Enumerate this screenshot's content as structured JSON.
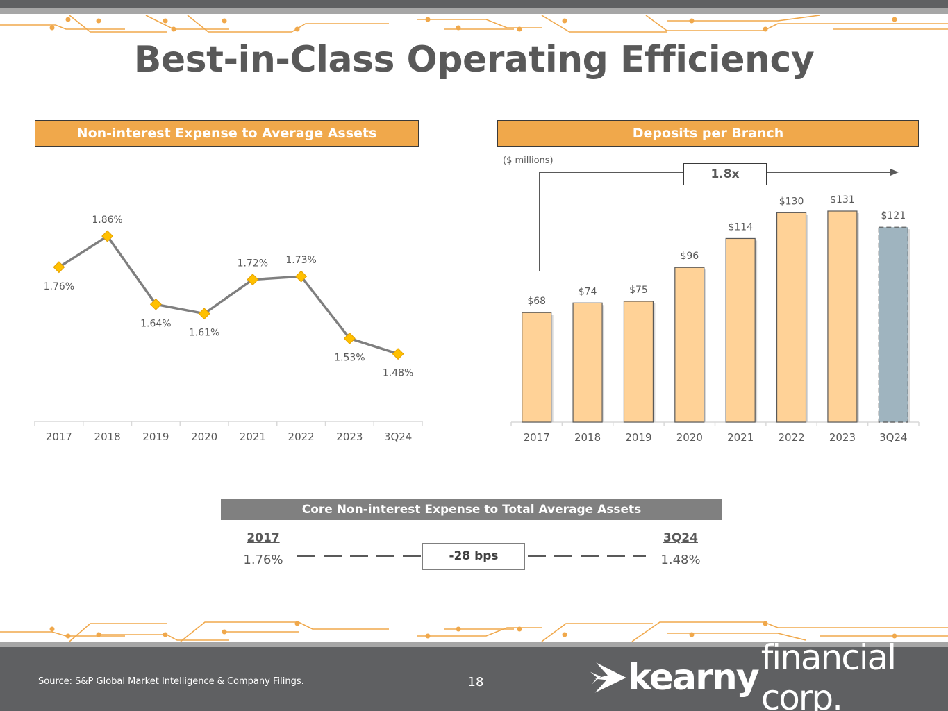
{
  "page": {
    "title": "Best-in-Class Operating Efficiency",
    "page_number": "18",
    "source": "Source: S&P Global Market Intelligence & Company Filings.",
    "logo_bold": "kearny",
    "logo_light": "financial corp."
  },
  "colors": {
    "accent_orange": "#f0a84b",
    "bar_fill": "#ffd297",
    "bar_estimate": "#9fb4bf",
    "line": "#7f7f7f",
    "marker": "#ffc000",
    "dark_gray": "#5f6062"
  },
  "left_panel": {
    "header": "Non-interest Expense to Average Assets"
  },
  "right_panel": {
    "header": "Deposits per Branch",
    "units": "($ millions)",
    "multiple": "1.8x"
  },
  "core": {
    "header": "Core Non-interest Expense to Total Average Assets",
    "start_label": "2017",
    "start_value": "1.76%",
    "end_label": "3Q24",
    "end_value": "1.48%",
    "change": "-28 bps"
  },
  "chart_data": [
    {
      "type": "line",
      "title": "Non-interest Expense to Average Assets",
      "categories": [
        "2017",
        "2018",
        "2019",
        "2020",
        "2021",
        "2022",
        "2023",
        "3Q24"
      ],
      "values": [
        1.76,
        1.86,
        1.64,
        1.61,
        1.72,
        1.73,
        1.53,
        1.48
      ],
      "labels": [
        "1.76%",
        "1.86%",
        "1.64%",
        "1.61%",
        "1.72%",
        "1.73%",
        "1.53%",
        "1.48%"
      ],
      "label_positions": [
        "below",
        "above",
        "below",
        "below",
        "above",
        "above",
        "below",
        "below"
      ],
      "ylim": [
        1.3,
        1.95
      ]
    },
    {
      "type": "bar",
      "title": "Deposits per Branch",
      "ylabel": "($ millions)",
      "categories": [
        "2017",
        "2018",
        "2019",
        "2020",
        "2021",
        "2022",
        "2023",
        "3Q24"
      ],
      "values": [
        68,
        74,
        75,
        96,
        114,
        130,
        131,
        121
      ],
      "labels": [
        "$68",
        "$74",
        "$75",
        "$96",
        "$114",
        "$130",
        "$131",
        "$121"
      ],
      "estimate_index": 7,
      "ylim": [
        0,
        150
      ]
    }
  ]
}
